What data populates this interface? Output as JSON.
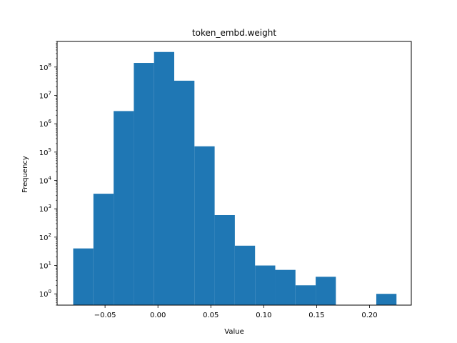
{
  "chart_data": {
    "type": "bar",
    "title": "token_embd.weight",
    "xlabel": "Value",
    "ylabel": "Frequency",
    "yscale": "log",
    "xlim": [
      -0.0953,
      0.2395
    ],
    "ylim": [
      0.4,
      800000000
    ],
    "grid": false,
    "color": "#1f77b4",
    "bins": [
      {
        "x0": -0.0801,
        "x1": -0.061,
        "count": 40
      },
      {
        "x0": -0.061,
        "x1": -0.0419,
        "count": 3400
      },
      {
        "x0": -0.0419,
        "x1": -0.0228,
        "count": 2800000
      },
      {
        "x0": -0.0228,
        "x1": -0.0037,
        "count": 140000000
      },
      {
        "x0": -0.0037,
        "x1": 0.0154,
        "count": 340000000
      },
      {
        "x0": 0.0154,
        "x1": 0.0345,
        "count": 33000000
      },
      {
        "x0": 0.0345,
        "x1": 0.0536,
        "count": 160000
      },
      {
        "x0": 0.0536,
        "x1": 0.0727,
        "count": 600
      },
      {
        "x0": 0.0727,
        "x1": 0.0918,
        "count": 50
      },
      {
        "x0": 0.0918,
        "x1": 0.1109,
        "count": 10
      },
      {
        "x0": 0.1109,
        "x1": 0.13,
        "count": 7
      },
      {
        "x0": 0.13,
        "x1": 0.1491,
        "count": 2
      },
      {
        "x0": 0.1491,
        "x1": 0.1682,
        "count": 4
      },
      {
        "x0": 0.1682,
        "x1": 0.1873,
        "count": 0
      },
      {
        "x0": 0.1873,
        "x1": 0.2064,
        "count": 0
      },
      {
        "x0": 0.2064,
        "x1": 0.2255,
        "count": 1
      }
    ],
    "x_ticks": [
      {
        "value": -0.05,
        "label": "−0.05"
      },
      {
        "value": 0.0,
        "label": "0.00"
      },
      {
        "value": 0.05,
        "label": "0.05"
      },
      {
        "value": 0.1,
        "label": "0.10"
      },
      {
        "value": 0.15,
        "label": "0.15"
      },
      {
        "value": 0.2,
        "label": "0.20"
      }
    ],
    "y_ticks": [
      {
        "exp": 0,
        "base": "10",
        "sup": "0"
      },
      {
        "exp": 1,
        "base": "10",
        "sup": "1"
      },
      {
        "exp": 2,
        "base": "10",
        "sup": "2"
      },
      {
        "exp": 3,
        "base": "10",
        "sup": "3"
      },
      {
        "exp": 4,
        "base": "10",
        "sup": "4"
      },
      {
        "exp": 5,
        "base": "10",
        "sup": "5"
      },
      {
        "exp": 6,
        "base": "10",
        "sup": "6"
      },
      {
        "exp": 7,
        "base": "10",
        "sup": "7"
      },
      {
        "exp": 8,
        "base": "10",
        "sup": "8"
      }
    ]
  }
}
